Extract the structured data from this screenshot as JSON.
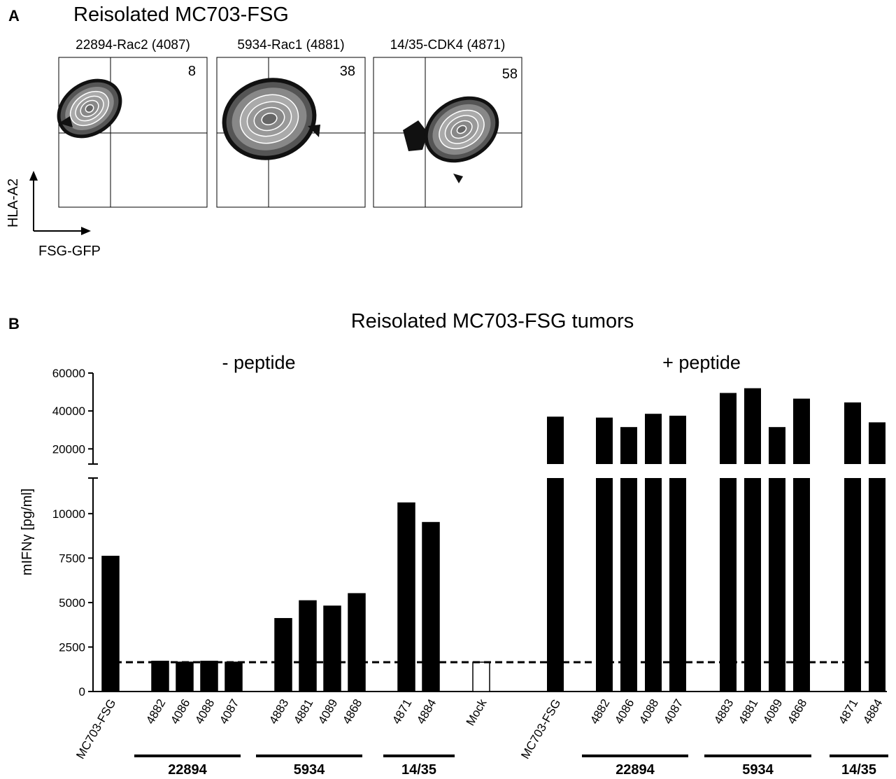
{
  "panel_a": {
    "letter": "A",
    "title": "Reisolated MC703-FSG",
    "plots": [
      {
        "label": "22894-Rac2 (4087)",
        "value": "8"
      },
      {
        "label": "5934-Rac1 (4881)",
        "value": "38"
      },
      {
        "label": "14/35-CDK4 (4871)",
        "value": "58"
      }
    ],
    "y_axis": "HLA-A2",
    "x_axis": "FSG-GFP"
  },
  "panel_b": {
    "letter": "B",
    "title": "Reisolated MC703-FSG tumors",
    "minus_label": "- peptide",
    "plus_label": "+ peptide",
    "ylabel": "mIFNγ [pg/ml]",
    "lower_ticks": [
      "0",
      "2500",
      "5000",
      "7500",
      "10000"
    ],
    "upper_ticks": [
      "20000",
      "40000",
      "60000"
    ],
    "groups": [
      {
        "name": "22894"
      },
      {
        "name": "5934"
      },
      {
        "name": "14/35"
      },
      {
        "name": "22894"
      },
      {
        "name": "5934"
      },
      {
        "name": "14/35"
      }
    ]
  },
  "chart_data": {
    "type": "bar",
    "title": "Reisolated MC703-FSG tumors",
    "ylabel": "mIFNγ [pg/ml]",
    "xlabel": "",
    "y_axis_break": true,
    "lower_ylim": [
      0,
      12000
    ],
    "upper_ylim": [
      12000,
      60000
    ],
    "threshold_line": 1650,
    "series": [
      {
        "name": "- peptide",
        "categories": [
          "MC703-FSG",
          "4882",
          "4086",
          "4088",
          "4087",
          "4883",
          "4881",
          "4089",
          "4868",
          "4871",
          "4884",
          "Mock"
        ],
        "values": [
          7600,
          1700,
          1650,
          1700,
          1650,
          4100,
          5100,
          4800,
          5500,
          10600,
          9500,
          1650
        ],
        "filled": [
          true,
          true,
          true,
          true,
          true,
          true,
          true,
          true,
          true,
          true,
          true,
          false
        ]
      },
      {
        "name": "+ peptide",
        "categories": [
          "MC703-FSG",
          "4882",
          "4086",
          "4088",
          "4087",
          "4883",
          "4881",
          "4089",
          "4868",
          "4871",
          "4884"
        ],
        "values": [
          37000,
          36500,
          31500,
          38500,
          37500,
          49500,
          52000,
          31500,
          46500,
          44500,
          34000
        ]
      }
    ]
  }
}
